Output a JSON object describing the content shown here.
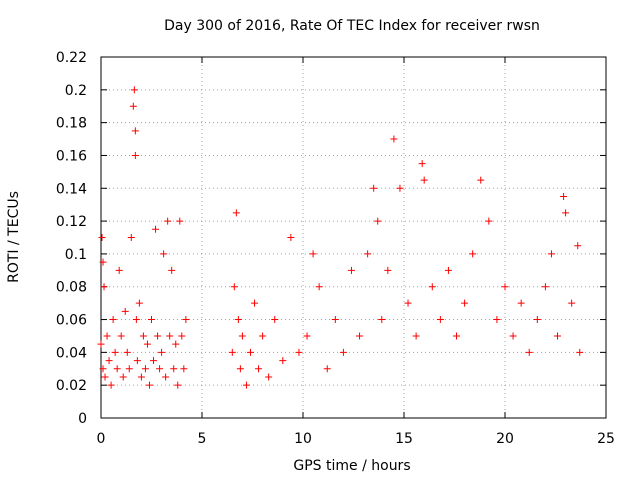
{
  "chart_data": {
    "type": "scatter",
    "title": "Day 300 of 2016, Rate Of TEC Index for receiver rwsn",
    "xlabel": "GPS time / hours",
    "ylabel": "ROTI / TECUs",
    "xlim": [
      0,
      25
    ],
    "ylim": [
      0,
      0.22
    ],
    "xticks": [
      0,
      5,
      10,
      15,
      20,
      25
    ],
    "yticks": [
      0,
      0.02,
      0.04,
      0.06,
      0.08,
      0.1,
      0.12,
      0.14,
      0.16,
      0.18,
      0.2,
      0.22
    ],
    "xtick_labels": [
      "0",
      "5",
      "10",
      "15",
      "20",
      "25"
    ],
    "ytick_labels": [
      "0",
      "0.02",
      "0.04",
      "0.06",
      "0.08",
      "0.1",
      "0.12",
      "0.14",
      "0.16",
      "0.18",
      "0.2",
      "0.22"
    ],
    "grid": true,
    "marker": "+",
    "color": "#ff0000",
    "data_gap_hours": [
      4.3,
      6.4
    ],
    "series": [
      {
        "name": "ROTI",
        "x": [
          0.0,
          0.05,
          0.1,
          0.1,
          0.15,
          0.2,
          0.3,
          0.4,
          0.5,
          0.6,
          0.7,
          0.8,
          0.9,
          1.0,
          1.1,
          1.2,
          1.3,
          1.4,
          1.5,
          1.6,
          1.65,
          1.7,
          1.7,
          1.75,
          1.8,
          1.9,
          2.0,
          2.1,
          2.2,
          2.3,
          2.4,
          2.5,
          2.6,
          2.7,
          2.8,
          2.9,
          3.0,
          3.1,
          3.2,
          3.3,
          3.4,
          3.5,
          3.6,
          3.7,
          3.8,
          3.9,
          4.0,
          4.1,
          4.2,
          6.5,
          6.6,
          6.7,
          6.8,
          6.9,
          7.0,
          7.2,
          7.4,
          7.6,
          7.8,
          8.0,
          8.3,
          8.6,
          9.0,
          9.4,
          9.8,
          10.2,
          10.5,
          10.8,
          11.2,
          11.6,
          12.0,
          12.4,
          12.8,
          13.2,
          13.5,
          13.7,
          13.9,
          14.2,
          14.5,
          14.8,
          15.2,
          15.6,
          15.9,
          16.0,
          16.4,
          16.8,
          17.2,
          17.6,
          18.0,
          18.4,
          18.8,
          19.2,
          19.6,
          20.0,
          20.4,
          20.8,
          21.2,
          21.6,
          22.0,
          22.3,
          22.6,
          22.9,
          23.0,
          23.3,
          23.6,
          23.7
        ],
        "y": [
          0.045,
          0.11,
          0.095,
          0.03,
          0.08,
          0.025,
          0.05,
          0.035,
          0.02,
          0.06,
          0.04,
          0.03,
          0.09,
          0.05,
          0.025,
          0.065,
          0.04,
          0.03,
          0.11,
          0.19,
          0.2,
          0.175,
          0.16,
          0.06,
          0.035,
          0.07,
          0.025,
          0.05,
          0.03,
          0.045,
          0.02,
          0.06,
          0.035,
          0.115,
          0.05,
          0.03,
          0.04,
          0.1,
          0.025,
          0.12,
          0.05,
          0.09,
          0.03,
          0.045,
          0.02,
          0.12,
          0.05,
          0.03,
          0.06,
          0.04,
          0.08,
          0.125,
          0.06,
          0.03,
          0.05,
          0.02,
          0.04,
          0.07,
          0.03,
          0.05,
          0.025,
          0.06,
          0.035,
          0.11,
          0.04,
          0.05,
          0.1,
          0.08,
          0.03,
          0.06,
          0.04,
          0.09,
          0.05,
          0.1,
          0.14,
          0.12,
          0.06,
          0.09,
          0.17,
          0.14,
          0.07,
          0.05,
          0.155,
          0.145,
          0.08,
          0.06,
          0.09,
          0.05,
          0.07,
          0.1,
          0.145,
          0.12,
          0.06,
          0.08,
          0.05,
          0.07,
          0.04,
          0.06,
          0.08,
          0.1,
          0.05,
          0.135,
          0.125,
          0.07,
          0.105,
          0.04
        ]
      }
    ]
  }
}
